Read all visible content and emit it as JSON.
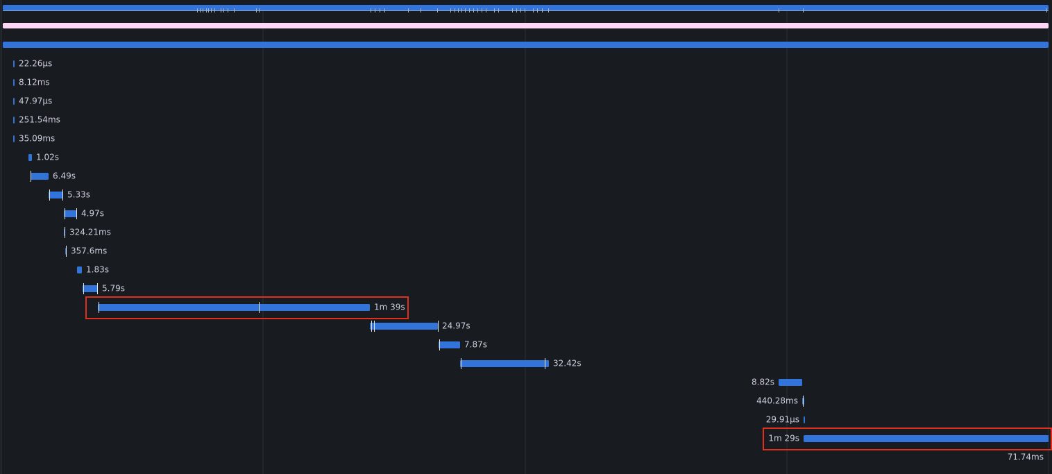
{
  "spans": [
    {
      "duration": "22.26µs"
    },
    {
      "duration": "8.12ms"
    },
    {
      "duration": "47.97µs"
    },
    {
      "duration": "251.54ms"
    },
    {
      "duration": "35.09ms"
    },
    {
      "duration": "1.02s"
    },
    {
      "duration": "6.49s"
    },
    {
      "duration": "5.33s"
    },
    {
      "duration": "4.97s"
    },
    {
      "duration": "324.21ms"
    },
    {
      "duration": "357.6ms"
    },
    {
      "duration": "1.83s"
    },
    {
      "duration": "5.79s"
    },
    {
      "duration": "1m 39s"
    },
    {
      "duration": "24.97s"
    },
    {
      "duration": "7.87s"
    },
    {
      "duration": "32.42s"
    },
    {
      "duration": "8.82s"
    },
    {
      "duration": "440.28ms"
    },
    {
      "duration": "29.91µs"
    },
    {
      "duration": "1m 29s"
    },
    {
      "duration": "71.74ms"
    }
  ]
}
